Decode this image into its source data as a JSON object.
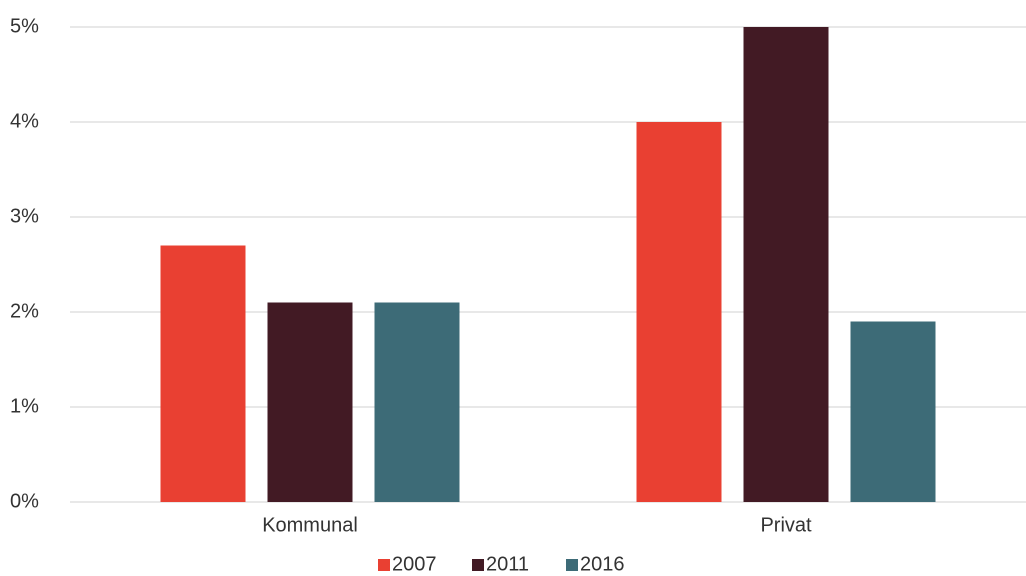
{
  "chart_data": {
    "type": "bar",
    "categories": [
      "Kommunal",
      "Privat"
    ],
    "series": [
      {
        "name": "2007",
        "color": "#e94032",
        "values": [
          2.7,
          4.0
        ]
      },
      {
        "name": "2011",
        "color": "#421a24",
        "values": [
          2.1,
          5.0
        ]
      },
      {
        "name": "2016",
        "color": "#3d6b77",
        "values": [
          2.1,
          1.9
        ]
      }
    ],
    "ylim": [
      0,
      5
    ],
    "yticks": [
      {
        "value": 0,
        "label": "0%"
      },
      {
        "value": 1,
        "label": "1%"
      },
      {
        "value": 2,
        "label": "2%"
      },
      {
        "value": 3,
        "label": "3%"
      },
      {
        "value": 4,
        "label": "4%"
      },
      {
        "value": 5,
        "label": "5%"
      }
    ],
    "grid": true,
    "legend": "bottom"
  }
}
